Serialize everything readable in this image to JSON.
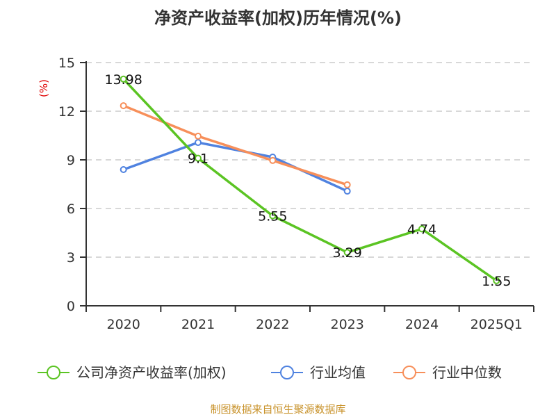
{
  "chart_data": {
    "type": "line",
    "title": "净资产收益率(加权)历年情况(%)",
    "xlabel": "",
    "ylabel": "(%)",
    "categories": [
      "2020",
      "2021",
      "2022",
      "2023",
      "2024",
      "2025Q1"
    ],
    "ylim": [
      0,
      15
    ],
    "yticks": [
      0,
      3,
      6,
      9,
      12,
      15
    ],
    "ytick_labels": [
      "0",
      "3",
      "6",
      "9",
      "12",
      "15"
    ],
    "grid": true,
    "legend_position": "bottom",
    "series": [
      {
        "name": "公司净资产收益率(加权)",
        "color": "#5bc423",
        "values": [
          13.98,
          9.1,
          5.55,
          3.29,
          4.74,
          1.55
        ],
        "data_labels": [
          "13.98",
          "9.1",
          "5.55",
          "3.29",
          "4.74",
          "1.55"
        ]
      },
      {
        "name": "行业均值",
        "color": "#4f82e0",
        "values": [
          8.4,
          10.07,
          9.17,
          7.07,
          null,
          null
        ]
      },
      {
        "name": "行业中位数",
        "color": "#f78f5a",
        "values": [
          12.34,
          10.46,
          8.96,
          7.46,
          null,
          null
        ]
      }
    ],
    "source": "制图数据来自恒生聚源数据库"
  }
}
